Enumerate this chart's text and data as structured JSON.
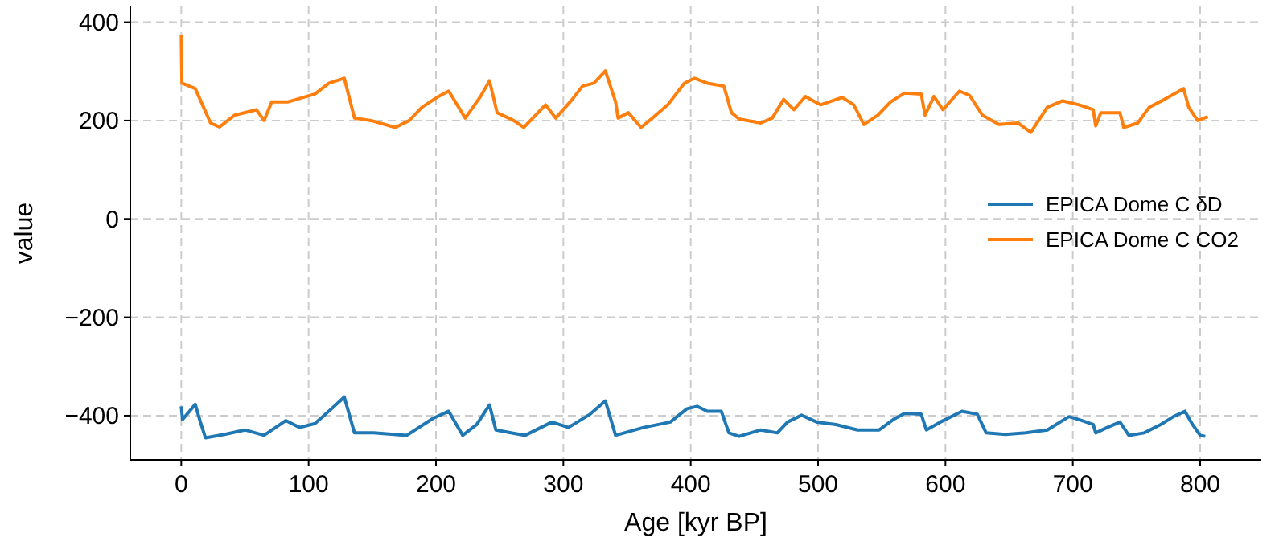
{
  "chart_data": {
    "type": "line",
    "xlabel": "Age [kyr BP]",
    "ylabel": "value",
    "xlim": [
      -40,
      848
    ],
    "ylim": [
      -490,
      432
    ],
    "xticks": [
      0,
      100,
      200,
      300,
      400,
      500,
      600,
      700,
      800
    ],
    "yticks": [
      {
        "value": -400,
        "label": "−400"
      },
      {
        "value": -200,
        "label": "−200"
      },
      0,
      200,
      400
    ],
    "grid": true,
    "legend": "right",
    "marker": "none",
    "line_style": "solid",
    "series": [
      {
        "name": "EPICA Dome C δD",
        "color": "#1f77b4",
        "x": [
          0,
          1,
          11,
          15,
          19,
          34,
          50,
          65,
          82,
          93,
          105,
          118,
          128,
          136,
          151,
          177,
          198,
          210,
          221,
          232,
          242,
          247,
          270,
          291,
          304,
          321,
          333,
          341,
          363,
          384,
          397,
          405,
          413,
          424,
          430,
          438,
          455,
          468,
          476,
          487,
          499,
          514,
          531,
          548,
          559,
          568,
          581,
          585,
          596,
          613,
          625,
          632,
          647,
          663,
          680,
          697,
          705,
          716,
          718,
          727,
          737,
          744,
          756,
          769,
          779,
          788,
          794,
          800,
          804
        ],
        "values": [
          -381,
          -408,
          -377,
          -413,
          -445,
          -438,
          -429,
          -440,
          -410,
          -424,
          -416,
          -386,
          -362,
          -435,
          -435,
          -440,
          -405,
          -391,
          -440,
          -418,
          -378,
          -429,
          -440,
          -413,
          -424,
          -397,
          -370,
          -440,
          -424,
          -413,
          -386,
          -381,
          -391,
          -391,
          -435,
          -442,
          -429,
          -435,
          -413,
          -399,
          -413,
          -418,
          -429,
          -429,
          -408,
          -395,
          -397,
          -429,
          -413,
          -391,
          -397,
          -435,
          -438,
          -435,
          -429,
          -402,
          -408,
          -418,
          -435,
          -424,
          -413,
          -440,
          -435,
          -418,
          -402,
          -391,
          -418,
          -440,
          -442
        ]
      },
      {
        "name": "EPICA Dome C CO2",
        "color": "#ff7f0e",
        "x": [
          0,
          0.5,
          11,
          23,
          30,
          42,
          59,
          65,
          71,
          84,
          105,
          116,
          128,
          136,
          149,
          168,
          179,
          189,
          202,
          210,
          223,
          235,
          242,
          248,
          261,
          269,
          286,
          294,
          307,
          315,
          324,
          333,
          341,
          343,
          351,
          361,
          370,
          382,
          395,
          403,
          413,
          426,
          432,
          438,
          455,
          464,
          473,
          481,
          490,
          502,
          519,
          528,
          536,
          547,
          557,
          568,
          581,
          584,
          591,
          598,
          611,
          619,
          629,
          642,
          657,
          667,
          680,
          692,
          705,
          716,
          718,
          722,
          737,
          740,
          751,
          760,
          772,
          787,
          791,
          798,
          806
        ],
        "values": [
          373,
          276,
          265,
          195,
          187,
          211,
          222,
          200,
          238,
          238,
          254,
          276,
          286,
          205,
          200,
          186,
          200,
          227,
          249,
          260,
          205,
          249,
          281,
          216,
          200,
          186,
          232,
          205,
          243,
          270,
          276,
          301,
          238,
          205,
          216,
          186,
          205,
          232,
          276,
          286,
          276,
          270,
          216,
          203,
          195,
          205,
          243,
          222,
          249,
          232,
          247,
          232,
          192,
          211,
          238,
          256,
          254,
          211,
          249,
          222,
          260,
          251,
          211,
          192,
          195,
          176,
          227,
          240,
          232,
          222,
          189,
          216,
          216,
          186,
          195,
          227,
          243,
          265,
          227,
          200,
          208
        ]
      }
    ]
  }
}
